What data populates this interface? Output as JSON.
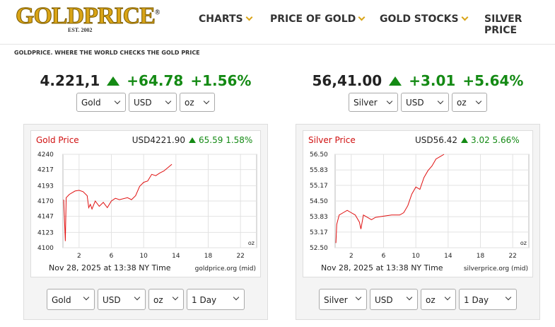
{
  "header": {
    "logo": "GOLDPRICE",
    "logo_mark": "®",
    "est": "EST. 2002",
    "nav": [
      "CHARTS",
      "PRICE OF GOLD",
      "GOLD STOCKS",
      "SILVER PRICE"
    ],
    "tagline": "GOLDPRICE. WHERE THE WORLD CHECKS THE GOLD PRICE"
  },
  "tickers": [
    {
      "price": "4.221,1",
      "change": "+64.78",
      "percent": "+1.56%",
      "selects": [
        "Gold",
        "USD",
        "oz"
      ],
      "controls": [
        "Gold",
        "USD",
        "oz",
        "1 Day"
      ]
    },
    {
      "price": "56,41.00",
      "change": "+3.01",
      "percent": "+5.64%",
      "selects": [
        "Silver",
        "USD",
        "oz"
      ],
      "controls": [
        "Silver",
        "USD",
        "oz",
        "1 Day"
      ]
    }
  ],
  "chart_data": [
    {
      "type": "line",
      "title": "Gold Price",
      "price": "USD4221.90",
      "change": "65.59",
      "percent": "1.58%",
      "footer": "Nov 28, 2025 at 13:38 NY Time",
      "source": "goldprice.org (mid)",
      "unit": "oz",
      "color": "#e01010",
      "grid": true,
      "x": [
        0.1,
        0.3,
        0.4,
        0.8,
        1.5,
        2,
        2.5,
        3,
        3.2,
        3.4,
        3.6,
        4,
        4.5,
        5,
        5.5,
        6,
        6.5,
        7,
        8,
        8.5,
        9,
        9.5,
        10,
        10.5,
        11,
        11.5,
        12,
        12.5,
        13,
        13.5
      ],
      "values": [
        4172,
        4110,
        4175,
        4180,
        4185,
        4186,
        4184,
        4178,
        4160,
        4165,
        4158,
        4170,
        4162,
        4168,
        4160,
        4170,
        4174,
        4172,
        4175,
        4172,
        4178,
        4192,
        4198,
        4200,
        4210,
        4208,
        4212,
        4215,
        4220,
        4225
      ],
      "xlim": [
        0,
        24
      ],
      "xticks": [
        2,
        6,
        10,
        14,
        18,
        22
      ],
      "ylim": [
        4100,
        4240
      ],
      "yticks": [
        4100,
        4123,
        4147,
        4170,
        4193,
        4217,
        4240
      ]
    },
    {
      "type": "line",
      "title": "Silver Price",
      "price": "USD56.42",
      "change": "3.02",
      "percent": "5.66%",
      "footer": "Nov 28, 2025 at 13:38 NY Time",
      "source": "silverprice.org (mid)",
      "unit": "oz",
      "color": "#e01010",
      "grid": true,
      "x": [
        0.1,
        0.2,
        0.5,
        1,
        1.5,
        2,
        2.5,
        3,
        3.2,
        3.5,
        4,
        4.5,
        5,
        6,
        7,
        8,
        8.5,
        9,
        9.5,
        10,
        10.5,
        11,
        11.5,
        12,
        12.5,
        13,
        13.5
      ],
      "values": [
        52.7,
        53.5,
        53.9,
        54.0,
        54.1,
        54.0,
        53.9,
        53.6,
        53.3,
        53.9,
        53.8,
        53.7,
        53.8,
        53.85,
        53.9,
        53.9,
        54.0,
        54.3,
        54.8,
        55.1,
        55.0,
        55.5,
        55.8,
        56.0,
        56.3,
        56.4,
        56.5
      ],
      "xlim": [
        0,
        24
      ],
      "xticks": [
        2,
        6,
        10,
        14,
        18,
        22
      ],
      "ylim": [
        52.5,
        56.5
      ],
      "yticks": [
        {
          "value": 52.5,
          "label": "52.50"
        },
        53.17,
        53.83,
        {
          "value": 54.5,
          "label": "54.50"
        },
        55.17,
        55.83,
        {
          "value": 56.5,
          "label": "56.50"
        }
      ]
    }
  ]
}
